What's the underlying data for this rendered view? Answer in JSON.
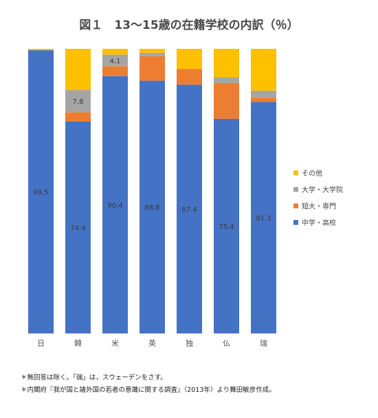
{
  "chart_data": {
    "type": "bar",
    "stacked": true,
    "title": "図１　13～15歳の在籍学校の内訳（％）",
    "categories": [
      "日",
      "韓",
      "米",
      "英",
      "独",
      "仏",
      "瑞"
    ],
    "series": [
      {
        "name": "中学・高校",
        "color": "#4472C4",
        "values": [
          99.5,
          74.4,
          90.4,
          88.8,
          87.4,
          75.4,
          81.3
        ],
        "labels": [
          "99.5",
          "74.4",
          "90.4",
          "88.8",
          "87.4",
          "75.4",
          "81.3"
        ]
      },
      {
        "name": "短大・専門",
        "color": "#ED7D31",
        "values": [
          0,
          3.3,
          3.5,
          8.6,
          5.5,
          12.6,
          1.5
        ],
        "labels": [
          "",
          "",
          "",
          "",
          "",
          "",
          ""
        ]
      },
      {
        "name": "大学・大学院",
        "color": "#A5A5A5",
        "values": [
          0,
          7.8,
          4.1,
          1.2,
          0,
          2.0,
          2.5
        ],
        "labels": [
          "",
          "7.8",
          "4.1",
          "",
          "",
          "",
          ""
        ]
      },
      {
        "name": "その他",
        "color": "#FFC000",
        "values": [
          0.5,
          14.5,
          2.0,
          1.4,
          7.1,
          10.0,
          14.7
        ],
        "labels": [
          "",
          "",
          "",
          "",
          "",
          "",
          ""
        ]
      }
    ],
    "legend_order": [
      "その他",
      "大学・大学院",
      "短大・専門",
      "中学・高校"
    ],
    "ylim": [
      0,
      100
    ],
    "grid": false,
    "legend_position": "right"
  },
  "notes": [
    "＊無回答は除く。「瑞」は，スウェーデンをさす。",
    "＊内閣府『我が国と諸外国の若者の意識に関する調査』（2013年）より舞田敏彦作成。"
  ]
}
